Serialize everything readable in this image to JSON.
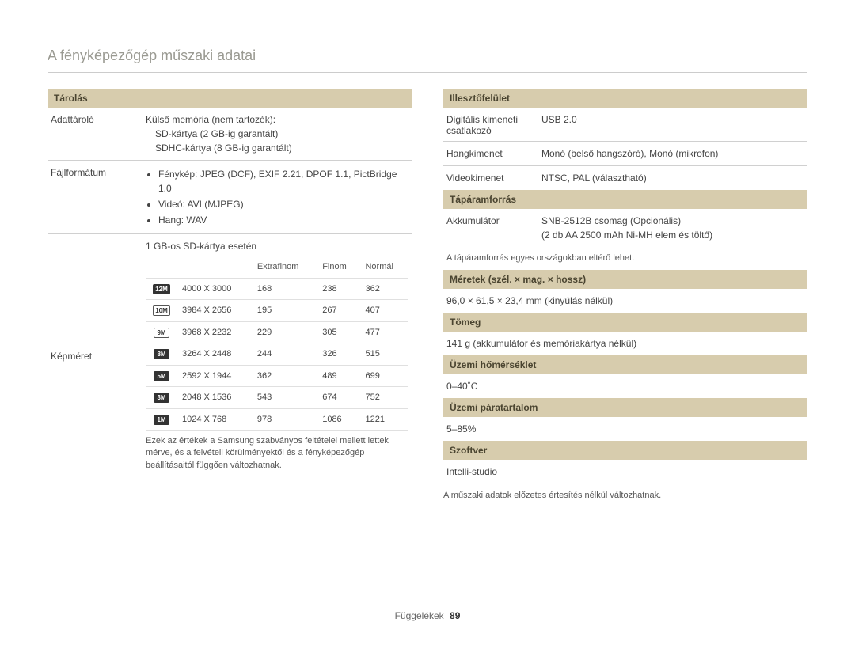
{
  "page": {
    "title": "A fényképezőgép műszaki adatai",
    "footer_label": "Függelékek",
    "page_number": "89"
  },
  "left": {
    "section_storage": "Tárolás",
    "row_storage": {
      "label": "Adattároló",
      "line1": "Külső memória (nem tartozék):",
      "line2": "SD-kártya (2 GB-ig garantált)",
      "line3": "SDHC-kártya (8 GB-ig garantált)"
    },
    "row_fileformat": {
      "label": "Fájlformátum",
      "b1": "Fénykép: JPEG (DCF), EXIF 2.21, DPOF 1.1, PictBridge 1.0",
      "b2": "Videó: AVI (MJPEG)",
      "b3": "Hang: WAV"
    },
    "row_imgsize": {
      "label": "Képméret",
      "intro": "1 GB-os SD-kártya esetén",
      "headers": {
        "h1": "",
        "h2": "",
        "h3": "Extrafinom",
        "h4": "Finom",
        "h5": "Normál"
      },
      "rows": [
        {
          "icon": "12M",
          "dark": true,
          "res": "4000 X 3000",
          "c1": "168",
          "c2": "238",
          "c3": "362"
        },
        {
          "icon": "10M",
          "dark": false,
          "res": "3984 X 2656",
          "c1": "195",
          "c2": "267",
          "c3": "407"
        },
        {
          "icon": "9M",
          "dark": false,
          "res": "3968 X 2232",
          "c1": "229",
          "c2": "305",
          "c3": "477"
        },
        {
          "icon": "8M",
          "dark": true,
          "res": "3264 X 2448",
          "c1": "244",
          "c2": "326",
          "c3": "515"
        },
        {
          "icon": "5M",
          "dark": true,
          "res": "2592 X 1944",
          "c1": "362",
          "c2": "489",
          "c3": "699"
        },
        {
          "icon": "3M",
          "dark": true,
          "res": "2048 X 1536",
          "c1": "543",
          "c2": "674",
          "c3": "752"
        },
        {
          "icon": "1M",
          "dark": true,
          "res": "1024 X 768",
          "c1": "978",
          "c2": "1086",
          "c3": "1221"
        }
      ],
      "note": "Ezek az értékek a Samsung szabványos feltételei mellett lettek mérve, és a felvételi körülményektől és a fényképezőgép beállításaitól függően változhatnak."
    }
  },
  "right": {
    "section_interface": "Illesztőfelület",
    "if_rows": [
      {
        "label": "Digitális kimeneti csatlakozó",
        "value": "USB 2.0"
      },
      {
        "label": "Hangkimenet",
        "value": "Monó (belső hangszóró), Monó (mikrofon)"
      },
      {
        "label": "Videokimenet",
        "value": "NTSC, PAL (választható)"
      }
    ],
    "section_power": "Tápáramforrás",
    "power_row": {
      "label": "Akkumulátor",
      "line1": "SNB-2512B csomag (Opcionális)",
      "line2": "(2 db AA 2500 mAh Ni-MH elem és töltő)"
    },
    "power_note": "A tápáramforrás egyes országokban eltérő lehet.",
    "section_dim": "Méretek (szél. × mag. × hossz)",
    "dim_value": "96,0 × 61,5 × 23,4 mm (kinyúlás nélkül)",
    "section_weight": "Tömeg",
    "weight_value": "141 g (akkumulátor és memóriakártya nélkül)",
    "section_optemp": "Üzemi hőmérséklet",
    "optemp_value": "0–40˚C",
    "section_ophum": "Üzemi páratartalom",
    "ophum_value": "5–85%",
    "section_soft": "Szoftver",
    "soft_value": "Intelli-studio",
    "final_note": "A műszaki adatok előzetes értesítés nélkül változhatnak."
  }
}
